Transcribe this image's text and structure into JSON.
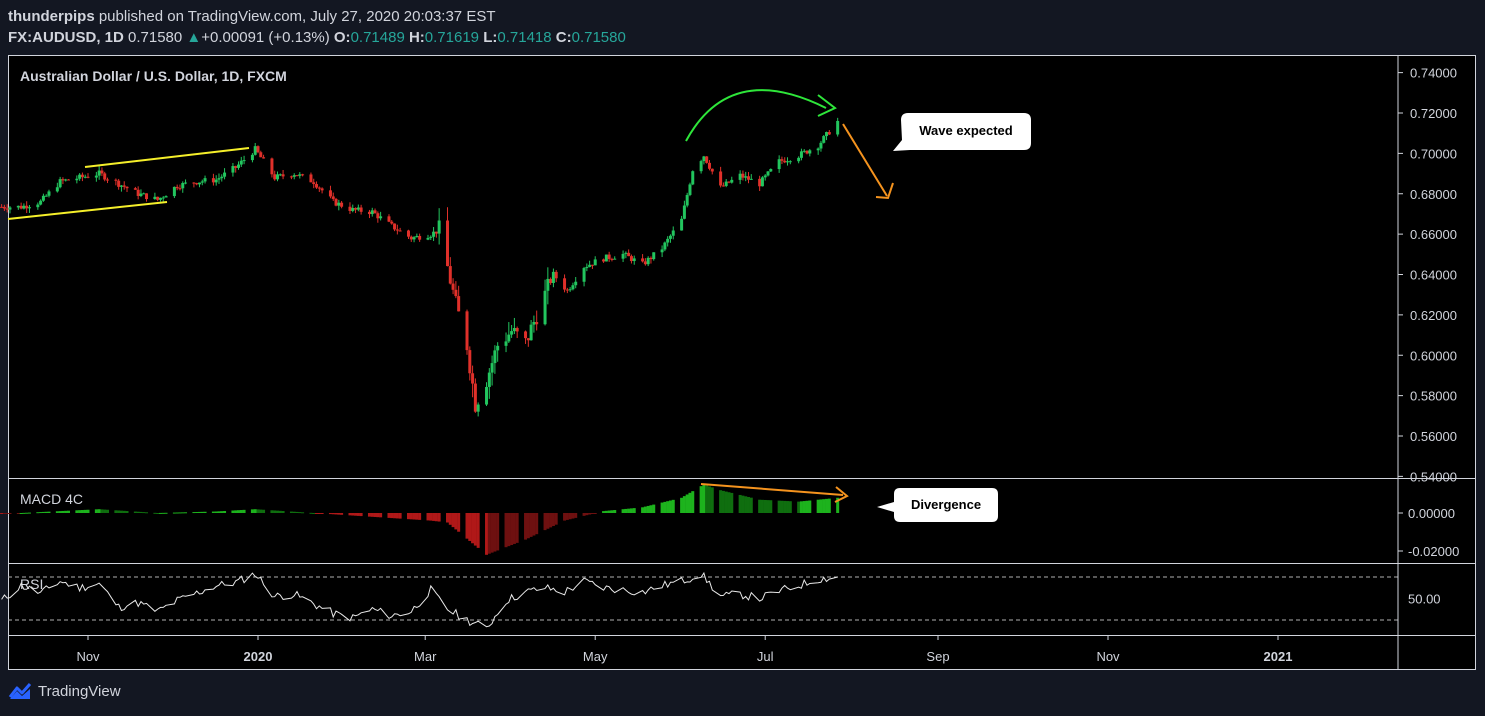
{
  "header": {
    "author": "thunderpips",
    "published_text": "published on TradingView.com, July 27, 2020 20:03:37 EST",
    "symbol": "FX:AUDUSD, 1D",
    "last": "0.71580",
    "up_arrow": "▲",
    "change": "+0.00091 (+0.13%)",
    "o_label": "O:",
    "o": "0.71489",
    "h_label": "H:",
    "h": "0.71619",
    "l_label": "L:",
    "l": "0.71418",
    "c_label": "C:",
    "c": "0.71580"
  },
  "footer": {
    "brand": "TradingView",
    "logo_icon": "tradingview-logo-icon"
  },
  "colors": {
    "up": "#22c55e",
    "down": "#e0302a",
    "macd_up": "#1db31d",
    "macd_down": "#b01818",
    "yellow_line": "#f5ef2a",
    "orange_arrow": "#f5931e",
    "green_arc": "#2ee63a",
    "rsi_line": "#e8e8e8"
  },
  "chart_data": [
    {
      "type": "candlestick",
      "title": "Australian Dollar / U.S. Dollar, 1D, FXCM",
      "y_ticks": [
        "0.74000",
        "0.72000",
        "0.70000",
        "0.68000",
        "0.66000",
        "0.64000",
        "0.62000",
        "0.60000",
        "0.58000",
        "0.56000",
        "0.54000"
      ],
      "y_tick_values": [
        0.74,
        0.72,
        0.7,
        0.68,
        0.66,
        0.64,
        0.62,
        0.6,
        0.58,
        0.56,
        0.54
      ],
      "x_ticks": [
        "Nov",
        "2020",
        "Mar",
        "May",
        "Jul",
        "Sep",
        "Nov",
        "2021"
      ],
      "close_path": [
        [
          "2019-10-08",
          0.6735
        ],
        [
          "2019-10-15",
          0.676
        ],
        [
          "2019-10-22",
          0.686
        ],
        [
          "2019-10-29",
          0.688
        ],
        [
          "2019-11-05",
          0.69
        ],
        [
          "2019-11-12",
          0.685
        ],
        [
          "2019-11-19",
          0.68
        ],
        [
          "2019-11-26",
          0.677
        ],
        [
          "2019-12-03",
          0.684
        ],
        [
          "2019-12-10",
          0.686
        ],
        [
          "2019-12-17",
          0.687
        ],
        [
          "2019-12-24",
          0.693
        ],
        [
          "2019-12-31",
          0.702
        ],
        [
          "2020-01-07",
          0.688
        ],
        [
          "2020-01-14",
          0.69
        ],
        [
          "2020-01-21",
          0.686
        ],
        [
          "2020-01-28",
          0.676
        ],
        [
          "2020-02-04",
          0.672
        ],
        [
          "2020-02-11",
          0.671
        ],
        [
          "2020-02-18",
          0.664
        ],
        [
          "2020-02-25",
          0.658
        ],
        [
          "2020-03-03",
          0.66
        ],
        [
          "2020-03-06",
          0.662
        ],
        [
          "2020-03-12",
          0.625
        ],
        [
          "2020-03-16",
          0.605
        ],
        [
          "2020-03-19",
          0.576
        ],
        [
          "2020-03-23",
          0.588
        ],
        [
          "2020-03-27",
          0.605
        ],
        [
          "2020-04-01",
          0.612
        ],
        [
          "2020-04-06",
          0.606
        ],
        [
          "2020-04-10",
          0.62
        ],
        [
          "2020-04-16",
          0.64
        ],
        [
          "2020-04-21",
          0.632
        ],
        [
          "2020-04-27",
          0.644
        ],
        [
          "2020-05-04",
          0.648
        ],
        [
          "2020-05-11",
          0.65
        ],
        [
          "2020-05-18",
          0.645
        ],
        [
          "2020-05-25",
          0.653
        ],
        [
          "2020-06-01",
          0.667
        ],
        [
          "2020-06-05",
          0.692
        ],
        [
          "2020-06-09",
          0.699
        ],
        [
          "2020-06-15",
          0.683
        ],
        [
          "2020-06-22",
          0.689
        ],
        [
          "2020-06-29",
          0.685
        ],
        [
          "2020-07-06",
          0.696
        ],
        [
          "2020-07-13",
          0.699
        ],
        [
          "2020-07-20",
          0.704
        ],
        [
          "2020-07-27",
          0.7158
        ]
      ],
      "annotations": [
        {
          "text": "Wave expected",
          "target": {
            "x": "2020-07-28",
            "y": 0.712
          }
        }
      ]
    },
    {
      "type": "histogram",
      "title": "MACD 4C",
      "y_ticks": [
        "0.00000",
        "-0.02000"
      ],
      "y_tick_values": [
        0.0,
        -0.02
      ],
      "values": [
        [
          "2019-10-01",
          -0.0005
        ],
        [
          "2019-10-22",
          0.001
        ],
        [
          "2019-11-05",
          0.002
        ],
        [
          "2019-11-26",
          0.0
        ],
        [
          "2019-12-17",
          0.0008
        ],
        [
          "2019-12-31",
          0.002
        ],
        [
          "2020-01-21",
          0.0
        ],
        [
          "2020-02-11",
          -0.002
        ],
        [
          "2020-03-03",
          -0.004
        ],
        [
          "2020-03-09",
          -0.005
        ],
        [
          "2020-03-23",
          -0.022
        ],
        [
          "2020-04-06",
          -0.014
        ],
        [
          "2020-04-20",
          -0.004
        ],
        [
          "2020-05-04",
          0.001
        ],
        [
          "2020-05-18",
          0.003
        ],
        [
          "2020-06-01",
          0.008
        ],
        [
          "2020-06-09",
          0.015
        ],
        [
          "2020-06-15",
          0.012
        ],
        [
          "2020-06-29",
          0.007
        ],
        [
          "2020-07-13",
          0.006
        ],
        [
          "2020-07-27",
          0.008
        ]
      ],
      "annotations": [
        {
          "text": "Divergence",
          "target": {
            "x": "2020-07-31",
            "y": 0.009
          }
        }
      ]
    },
    {
      "type": "line",
      "title": "RSI",
      "y_ticks": [
        "50.00"
      ],
      "y_tick_values": [
        50
      ],
      "band": [
        30,
        70
      ],
      "values": [
        [
          "2019-10-01",
          48
        ],
        [
          "2019-10-08",
          62
        ],
        [
          "2019-10-15",
          55
        ],
        [
          "2019-10-22",
          66
        ],
        [
          "2019-10-29",
          60
        ],
        [
          "2019-11-05",
          64
        ],
        [
          "2019-11-12",
          42
        ],
        [
          "2019-11-19",
          46
        ],
        [
          "2019-11-26",
          38
        ],
        [
          "2019-12-03",
          48
        ],
        [
          "2019-12-10",
          55
        ],
        [
          "2019-12-17",
          62
        ],
        [
          "2019-12-24",
          65
        ],
        [
          "2019-12-31",
          73
        ],
        [
          "2020-01-07",
          52
        ],
        [
          "2020-01-14",
          54
        ],
        [
          "2020-01-21",
          45
        ],
        [
          "2020-01-28",
          36
        ],
        [
          "2020-02-04",
          32
        ],
        [
          "2020-02-11",
          40
        ],
        [
          "2020-02-18",
          34
        ],
        [
          "2020-02-25",
          38
        ],
        [
          "2020-03-03",
          58
        ],
        [
          "2020-03-09",
          40
        ],
        [
          "2020-03-16",
          30
        ],
        [
          "2020-03-23",
          22
        ],
        [
          "2020-03-30",
          48
        ],
        [
          "2020-04-06",
          56
        ],
        [
          "2020-04-13",
          60
        ],
        [
          "2020-04-20",
          56
        ],
        [
          "2020-04-27",
          66
        ],
        [
          "2020-05-04",
          60
        ],
        [
          "2020-05-11",
          58
        ],
        [
          "2020-05-18",
          56
        ],
        [
          "2020-05-25",
          62
        ],
        [
          "2020-06-01",
          66
        ],
        [
          "2020-06-08",
          73
        ],
        [
          "2020-06-15",
          52
        ],
        [
          "2020-06-22",
          54
        ],
        [
          "2020-06-29",
          50
        ],
        [
          "2020-07-06",
          57
        ],
        [
          "2020-07-13",
          62
        ],
        [
          "2020-07-20",
          68
        ],
        [
          "2020-07-27",
          70
        ]
      ]
    }
  ]
}
